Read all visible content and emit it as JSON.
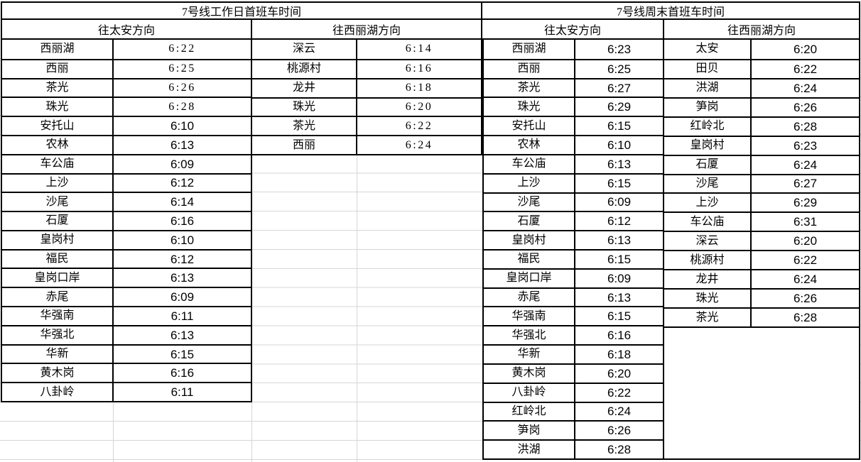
{
  "colors": {
    "background": "#ffffff",
    "table_border": "#000000",
    "gridline": "#d6d6d6",
    "text": "#000000"
  },
  "tables": [
    {
      "id": "weekday",
      "title": "7号线工作日首班车时间",
      "directions": [
        {
          "header": "往太安方向",
          "rows": [
            {
              "station": "西丽湖",
              "time": "6:22",
              "wide": true
            },
            {
              "station": "西丽",
              "time": "6:25",
              "wide": true
            },
            {
              "station": "茶光",
              "time": "6:26",
              "wide": true
            },
            {
              "station": "珠光",
              "time": "6:28",
              "wide": true
            },
            {
              "station": "安托山",
              "time": "6:10",
              "wide": false
            },
            {
              "station": "农林",
              "time": "6:13",
              "wide": false
            },
            {
              "station": "车公庙",
              "time": "6:09",
              "wide": false
            },
            {
              "station": "上沙",
              "time": "6:12",
              "wide": false
            },
            {
              "station": "沙尾",
              "time": "6:14",
              "wide": false
            },
            {
              "station": "石厦",
              "time": "6:16",
              "wide": false
            },
            {
              "station": "皇岗村",
              "time": "6:10",
              "wide": false
            },
            {
              "station": "福民",
              "time": "6:12",
              "wide": false
            },
            {
              "station": "皇岗口岸",
              "time": "6:13",
              "wide": false
            },
            {
              "station": "赤尾",
              "time": "6:09",
              "wide": false
            },
            {
              "station": "华强南",
              "time": "6:11",
              "wide": false
            },
            {
              "station": "华强北",
              "time": "6:13",
              "wide": false
            },
            {
              "station": "华新",
              "time": "6:15",
              "wide": false
            },
            {
              "station": "黄木岗",
              "time": "6:16",
              "wide": false
            },
            {
              "station": "八卦岭",
              "time": "6:11",
              "wide": false
            }
          ]
        },
        {
          "header": "往西丽湖方向",
          "rows": [
            {
              "station": "深云",
              "time": "6:14",
              "wide": true
            },
            {
              "station": "桃源村",
              "time": "6:16",
              "wide": true
            },
            {
              "station": "龙井",
              "time": "6:18",
              "wide": true
            },
            {
              "station": "珠光",
              "time": "6:20",
              "wide": true
            },
            {
              "station": "茶光",
              "time": "6:22",
              "wide": true
            },
            {
              "station": "西丽",
              "time": "6:24",
              "wide": true
            }
          ]
        }
      ]
    },
    {
      "id": "weekend",
      "title": "7号线周末首班车时间",
      "directions": [
        {
          "header": "往太安方向",
          "rows": [
            {
              "station": "西丽湖",
              "time": "6:23",
              "wide": false
            },
            {
              "station": "西丽",
              "time": "6:25",
              "wide": false
            },
            {
              "station": "茶光",
              "time": "6:27",
              "wide": false
            },
            {
              "station": "珠光",
              "time": "6:29",
              "wide": false
            },
            {
              "station": "安托山",
              "time": "6:15",
              "wide": false
            },
            {
              "station": "农林",
              "time": "6:10",
              "wide": false
            },
            {
              "station": "车公庙",
              "time": "6:13",
              "wide": false
            },
            {
              "station": "上沙",
              "time": "6:15",
              "wide": false
            },
            {
              "station": "沙尾",
              "time": "6:09",
              "wide": false
            },
            {
              "station": "石厦",
              "time": "6:12",
              "wide": false
            },
            {
              "station": "皇岗村",
              "time": "6:13",
              "wide": false
            },
            {
              "station": "福民",
              "time": "6:15",
              "wide": false
            },
            {
              "station": "皇岗口岸",
              "time": "6:09",
              "wide": false
            },
            {
              "station": "赤尾",
              "time": "6:13",
              "wide": false
            },
            {
              "station": "华强南",
              "time": "6:15",
              "wide": false
            },
            {
              "station": "华强北",
              "time": "6:16",
              "wide": false
            },
            {
              "station": "华新",
              "time": "6:18",
              "wide": false
            },
            {
              "station": "黄木岗",
              "time": "6:20",
              "wide": false
            },
            {
              "station": "八卦岭",
              "time": "6:22",
              "wide": false
            },
            {
              "station": "红岭北",
              "time": "6:24",
              "wide": false
            },
            {
              "station": "笋岗",
              "time": "6:26",
              "wide": false
            },
            {
              "station": "洪湖",
              "time": "6:28",
              "wide": false
            }
          ]
        },
        {
          "header": "往西丽湖方向",
          "rows": [
            {
              "station": "太安",
              "time": "6:20",
              "wide": false
            },
            {
              "station": "田贝",
              "time": "6:22",
              "wide": false
            },
            {
              "station": "洪湖",
              "time": "6:24",
              "wide": false
            },
            {
              "station": "笋岗",
              "time": "6:26",
              "wide": false
            },
            {
              "station": "红岭北",
              "time": "6:28",
              "wide": false
            },
            {
              "station": "皇岗村",
              "time": "6:23",
              "wide": false
            },
            {
              "station": "石厦",
              "time": "6:24",
              "wide": false
            },
            {
              "station": "沙尾",
              "time": "6:27",
              "wide": false
            },
            {
              "station": "上沙",
              "time": "6:29",
              "wide": false
            },
            {
              "station": "车公庙",
              "time": "6:31",
              "wide": false
            },
            {
              "station": "深云",
              "time": "6:20",
              "wide": false
            },
            {
              "station": "桃源村",
              "time": "6:22",
              "wide": false
            },
            {
              "station": "龙井",
              "time": "6:24",
              "wide": false
            },
            {
              "station": "珠光",
              "time": "6:26",
              "wide": false
            },
            {
              "station": "茶光",
              "time": "6:28",
              "wide": false
            }
          ]
        }
      ]
    }
  ]
}
